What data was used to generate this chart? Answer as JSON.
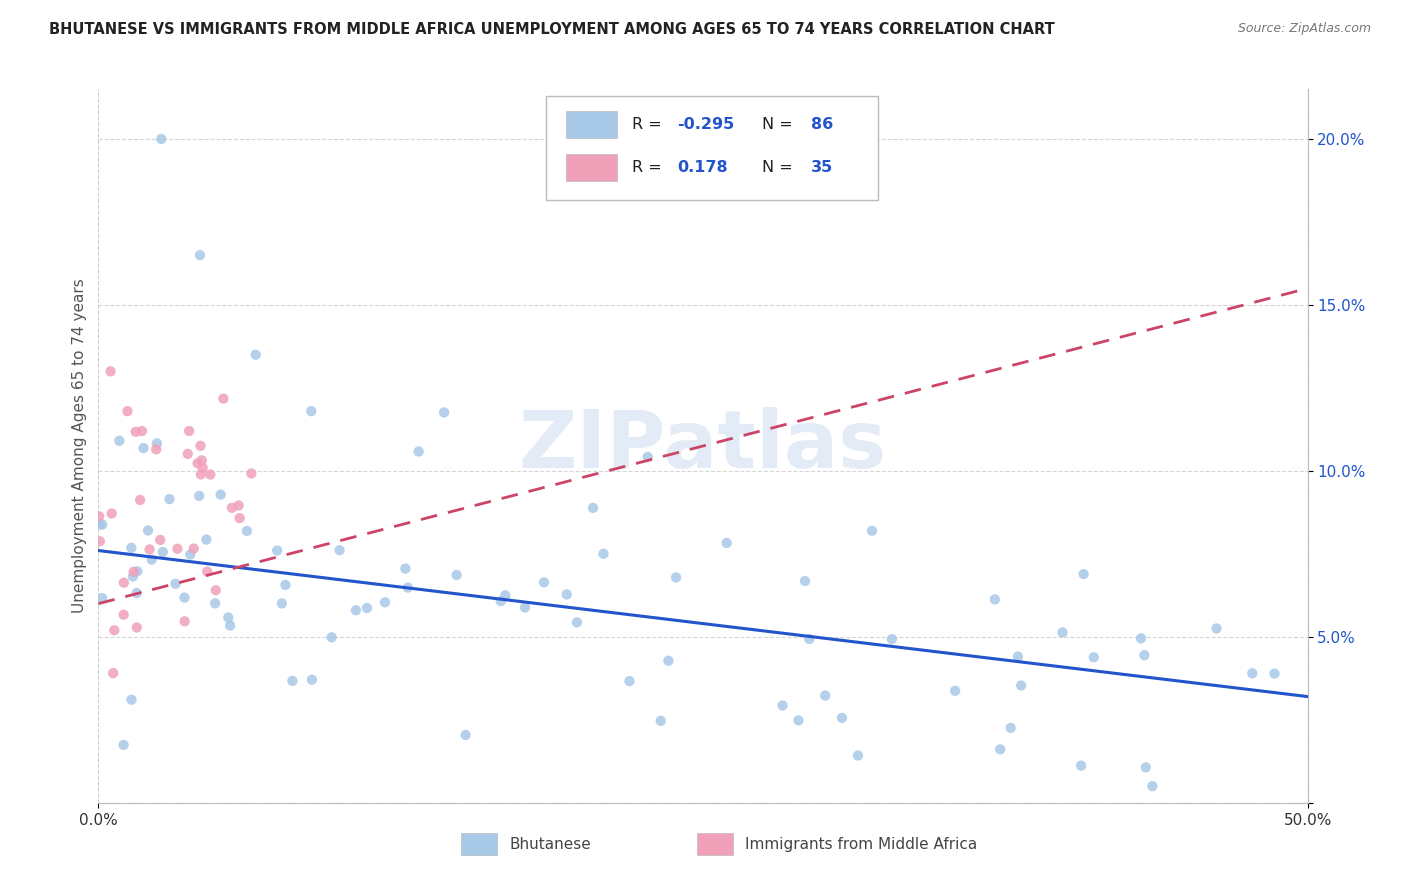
{
  "title": "BHUTANESE VS IMMIGRANTS FROM MIDDLE AFRICA UNEMPLOYMENT AMONG AGES 65 TO 74 YEARS CORRELATION CHART",
  "source": "Source: ZipAtlas.com",
  "ylabel": "Unemployment Among Ages 65 to 74 years",
  "x_lim": [
    0.0,
    0.5
  ],
  "y_lim": [
    0.0,
    0.215
  ],
  "blue_color": "#a8c8e8",
  "blue_line_color": "#2255cc",
  "pink_color": "#f0a0b8",
  "pink_line_color": "#cc4466",
  "watermark": "ZIPatlas",
  "legend_R1": "-0.295",
  "legend_N1": "86",
  "legend_R2": "0.178",
  "legend_N2": "35",
  "blue_line_x0": 0.0,
  "blue_line_y0": 0.076,
  "blue_line_x1": 0.5,
  "blue_line_y1": 0.032,
  "pink_line_x0": 0.0,
  "pink_line_y0": 0.06,
  "pink_line_x1": 0.5,
  "pink_line_y1": 0.155
}
